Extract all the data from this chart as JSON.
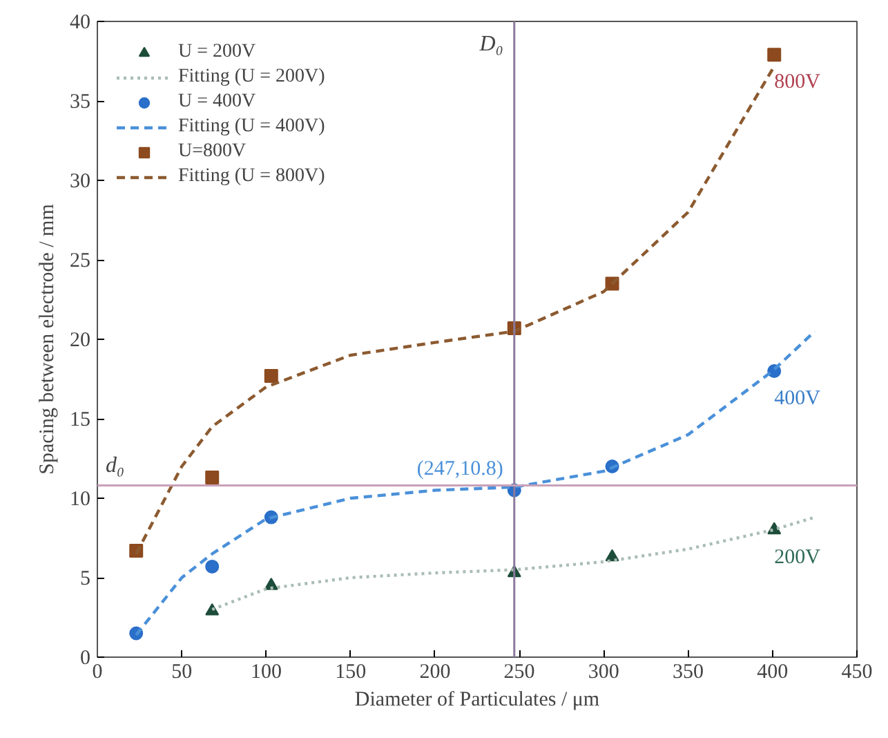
{
  "chart_data": {
    "type": "scatter",
    "xlabel": "Diameter of Particulates / μm",
    "ylabel": "Spacing between electrode / mm",
    "xlim": [
      0,
      450
    ],
    "xticks": [
      0,
      50,
      100,
      150,
      200,
      250,
      300,
      350,
      400,
      450
    ],
    "ylim": [
      0,
      40
    ],
    "yticks": [
      0,
      5,
      10,
      15,
      20,
      25,
      30,
      35,
      40
    ],
    "grid": false,
    "legend": "top left",
    "series": [
      {
        "name": "U = 200V",
        "marker": "triangle",
        "color": "#1d4d3a",
        "x": [
          68,
          103,
          247,
          305,
          401
        ],
        "values": [
          2.9,
          4.5,
          5.3,
          6.3,
          8.0
        ]
      },
      {
        "name": "Fitting (U = 200V)",
        "type": "line",
        "line_style": "dotted",
        "color": "#a9bdb4",
        "x": [
          68,
          100,
          150,
          200,
          247,
          300,
          350,
          400,
          425
        ],
        "values": [
          3.0,
          4.3,
          5.0,
          5.3,
          5.5,
          6.0,
          6.8,
          8.0,
          8.8
        ]
      },
      {
        "name": "U = 400V",
        "marker": "circle",
        "color": "#2a6fc9",
        "x": [
          23,
          68,
          103,
          247,
          305,
          401
        ],
        "values": [
          1.5,
          5.7,
          8.8,
          10.5,
          12.0,
          18.0
        ]
      },
      {
        "name": "Fitting (U = 400V)",
        "type": "line",
        "line_style": "dashed",
        "color": "#4a90d9",
        "x": [
          23,
          50,
          68,
          100,
          150,
          200,
          247,
          300,
          350,
          400,
          425
        ],
        "values": [
          1.4,
          5.0,
          6.5,
          8.7,
          10.0,
          10.5,
          10.7,
          11.7,
          14.0,
          18.0,
          20.5
        ]
      },
      {
        "name": "U=800V",
        "marker": "square",
        "color": "#8c4a1e",
        "x": [
          23,
          68,
          103,
          247,
          305,
          401
        ],
        "values": [
          6.7,
          11.3,
          17.7,
          20.7,
          23.5,
          37.9
        ]
      },
      {
        "name": "Fitting (U = 800V)",
        "type": "line",
        "line_style": "dashed",
        "color": "#8c5a30",
        "x": [
          23,
          50,
          68,
          100,
          150,
          200,
          247,
          300,
          350,
          400
        ],
        "values": [
          6.5,
          12.0,
          14.5,
          17.0,
          19.0,
          19.8,
          20.5,
          23.0,
          28.0,
          37.0
        ]
      }
    ],
    "ref_lines": [
      {
        "axis": "x",
        "value": 247,
        "label": "D₀",
        "color": "#8a7a9a"
      },
      {
        "axis": "y",
        "value": 10.8,
        "label": "d₀",
        "color": "#c9a0b8"
      }
    ],
    "annotations": [
      {
        "text": "(247,10.8)",
        "x": 247,
        "y": 10.8
      },
      "800V",
      "400V",
      "200V"
    ]
  }
}
